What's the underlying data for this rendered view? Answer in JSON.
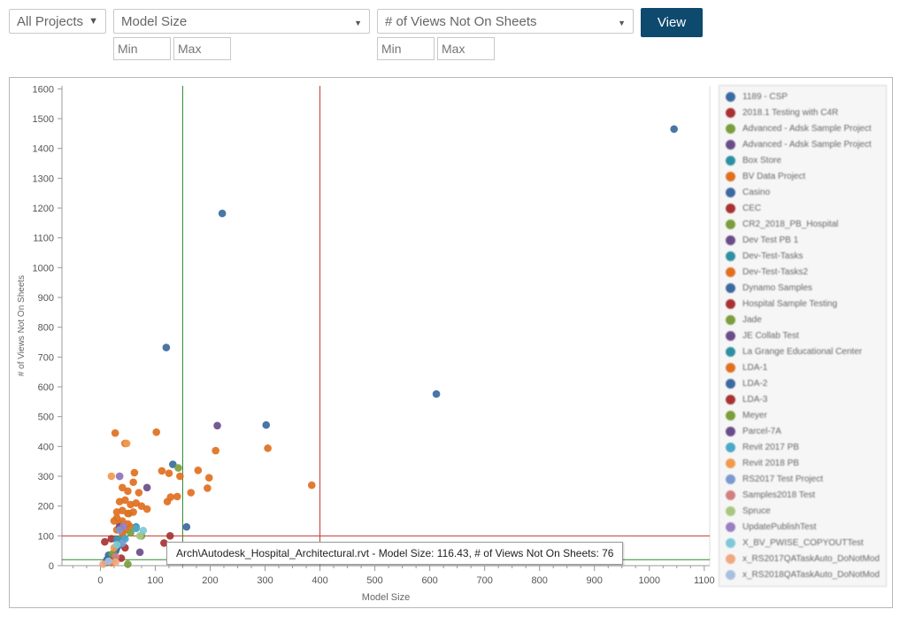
{
  "filters": {
    "project_select": "All Projects",
    "x_metric_select": "Model Size",
    "y_metric_select": "# of Views Not On Sheets",
    "x_min_placeholder": "Min",
    "x_max_placeholder": "Max",
    "y_min_placeholder": "Min",
    "y_max_placeholder": "Max",
    "view_button": "View"
  },
  "tooltip": "Arch\\Autodesk_Hospital_Architectural.rvt - Model Size: 116.43, # of Views Not On Sheets: 76",
  "chart_data": {
    "type": "scatter",
    "title": "",
    "xlabel": "Model Size",
    "ylabel": "# of Views Not On Sheets",
    "xlim": [
      -70,
      1110
    ],
    "ylim": [
      0,
      1610
    ],
    "xticks": [
      0,
      100,
      200,
      300,
      400,
      500,
      600,
      700,
      800,
      900,
      1000,
      1100
    ],
    "yticks": [
      0,
      100,
      200,
      300,
      400,
      500,
      600,
      700,
      800,
      900,
      1000,
      1100,
      1200,
      1300,
      1400,
      1500,
      1600
    ],
    "reference_lines": [
      {
        "axis": "x",
        "value": 150,
        "color": "#2e8b2e"
      },
      {
        "axis": "x",
        "value": 400,
        "color": "#c0392b"
      },
      {
        "axis": "y",
        "value": 100,
        "color": "#c0392b"
      },
      {
        "axis": "y",
        "value": 20,
        "color": "#2e8b2e"
      }
    ],
    "series": [
      {
        "name": "1189 - CSP",
        "color": "#3b6aa0",
        "points": [
          [
            1045,
            1465
          ],
          [
            222,
            1182
          ],
          [
            120,
            732
          ],
          [
            612,
            576
          ],
          [
            302,
            472
          ],
          [
            132,
            340
          ],
          [
            157,
            130
          ]
        ]
      },
      {
        "name": "2018.1 Testing with C4R",
        "color": "#a83232",
        "points": [
          [
            127,
            100
          ],
          [
            8,
            80
          ],
          [
            20,
            90
          ]
        ]
      },
      {
        "name": "Advanced - Adsk Sample Project",
        "color": "#7a9e3c",
        "points": [
          [
            142,
            328
          ],
          [
            52,
            175
          ],
          [
            50,
            5
          ]
        ]
      },
      {
        "name": "Advanced - Adsk Sample Project",
        "color": "#6b4c8a",
        "points": [
          [
            85,
            262
          ],
          [
            72,
            45
          ],
          [
            30,
            60
          ]
        ]
      },
      {
        "name": "Box Store",
        "color": "#2e8fa3",
        "points": [
          [
            65,
            130
          ],
          [
            42,
            95
          ],
          [
            20,
            20
          ]
        ]
      },
      {
        "name": "BV Data Project",
        "color": "#e07020",
        "points": [
          [
            27,
            445
          ],
          [
            102,
            448
          ],
          [
            210,
            386
          ],
          [
            305,
            394
          ],
          [
            385,
            270
          ],
          [
            112,
            318
          ],
          [
            125,
            310
          ],
          [
            145,
            300
          ],
          [
            178,
            320
          ],
          [
            198,
            295
          ],
          [
            195,
            260
          ],
          [
            128,
            230
          ],
          [
            140,
            232
          ],
          [
            165,
            245
          ],
          [
            122,
            215
          ],
          [
            62,
            312
          ],
          [
            60,
            280
          ],
          [
            40,
            262
          ],
          [
            50,
            250
          ],
          [
            70,
            245
          ],
          [
            35,
            215
          ],
          [
            45,
            220
          ],
          [
            55,
            205
          ],
          [
            65,
            210
          ],
          [
            75,
            200
          ],
          [
            85,
            190
          ],
          [
            30,
            180
          ],
          [
            40,
            185
          ],
          [
            50,
            175
          ],
          [
            60,
            180
          ],
          [
            30,
            160
          ],
          [
            40,
            150
          ],
          [
            50,
            140
          ],
          [
            55,
            130
          ],
          [
            45,
            120
          ],
          [
            35,
            140
          ],
          [
            25,
            150
          ],
          [
            30,
            120
          ],
          [
            40,
            110
          ]
        ]
      },
      {
        "name": "Casino",
        "color": "#3b6aa0",
        "points": [
          [
            15,
            35
          ],
          [
            28,
            50
          ]
        ]
      },
      {
        "name": "CEC",
        "color": "#a83232",
        "points": [
          [
            45,
            60
          ],
          [
            25,
            25
          ]
        ]
      },
      {
        "name": "CR2_2018_PB_Hospital",
        "color": "#7a9e3c",
        "points": [
          [
            22,
            40
          ]
        ]
      },
      {
        "name": "Dev Test PB 1",
        "color": "#6b4c8a",
        "points": [
          [
            213,
            470
          ]
        ]
      },
      {
        "name": "Dev-Test-Tasks",
        "color": "#2e8fa3",
        "points": [
          [
            35,
            70
          ]
        ]
      },
      {
        "name": "Dev-Test-Tasks2",
        "color": "#e07020",
        "points": [
          [
            45,
            410
          ]
        ]
      },
      {
        "name": "Dynamo Samples",
        "color": "#3b6aa0",
        "points": [
          [
            10,
            10
          ]
        ]
      },
      {
        "name": "Hospital Sample Testing",
        "color": "#a83232",
        "points": [
          [
            116,
            76
          ]
        ]
      },
      {
        "name": "Jade",
        "color": "#7a9e3c",
        "points": [
          [
            55,
            110
          ]
        ]
      },
      {
        "name": "JE Collab Test",
        "color": "#6b4c8a",
        "points": [
          [
            35,
            300
          ]
        ]
      },
      {
        "name": "La Grange Educational Center",
        "color": "#2e8fa3",
        "points": [
          [
            30,
            88
          ]
        ]
      },
      {
        "name": "LDA-1",
        "color": "#e07020",
        "points": [
          [
            20,
            10
          ]
        ]
      },
      {
        "name": "LDA-2",
        "color": "#3b6aa0",
        "points": [
          [
            12,
            20
          ]
        ]
      },
      {
        "name": "LDA-3",
        "color": "#a83232",
        "points": [
          [
            38,
            25
          ]
        ]
      },
      {
        "name": "Meyer",
        "color": "#7a9e3c",
        "points": [
          [
            75,
            100
          ]
        ]
      },
      {
        "name": "Parcel-7A",
        "color": "#6b4c8a",
        "points": [
          [
            35,
            130
          ]
        ]
      },
      {
        "name": "Revit 2017 PB",
        "color": "#4aa8c8",
        "points": [
          [
            65,
            125
          ],
          [
            45,
            90
          ]
        ]
      },
      {
        "name": "Revit 2018 PB",
        "color": "#f09a50",
        "points": [
          [
            20,
            300
          ],
          [
            48,
            410
          ],
          [
            25,
            60
          ]
        ]
      },
      {
        "name": "RS2017 Test Project",
        "color": "#7a9ad0",
        "points": [
          [
            35,
            120
          ],
          [
            40,
            75
          ]
        ]
      },
      {
        "name": "Samples2018 Test",
        "color": "#d08080",
        "points": [
          [
            28,
            30
          ]
        ]
      },
      {
        "name": "Spruce",
        "color": "#a8c880",
        "points": [
          [
            72,
            100
          ]
        ]
      },
      {
        "name": "UpdatePublishTest",
        "color": "#9a80c0",
        "points": [
          [
            35,
            300
          ],
          [
            42,
            132
          ]
        ]
      },
      {
        "name": "X_BV_PWISE_COPYOUTTest",
        "color": "#80c8d8",
        "points": [
          [
            78,
            118
          ],
          [
            30,
            70
          ]
        ]
      },
      {
        "name": "x_RS2017QATaskAuto_DoNotMod",
        "color": "#f0a880",
        "points": [
          [
            28,
            12
          ],
          [
            5,
            5
          ]
        ]
      },
      {
        "name": "x_RS2018QATaskAuto_DoNotMod",
        "color": "#a8c0e0",
        "points": [
          [
            15,
            15
          ]
        ]
      }
    ]
  }
}
